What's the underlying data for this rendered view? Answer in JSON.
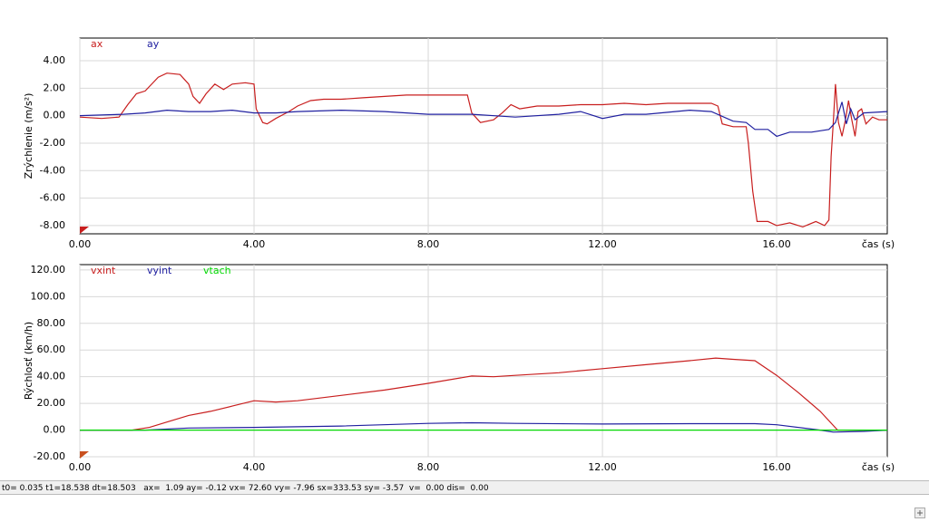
{
  "chart_data": [
    {
      "type": "line",
      "y_label": "Zrýchlenie  (m/s²)",
      "x_label": "čas (s)",
      "grid": true,
      "xlim": [
        0,
        18.54
      ],
      "ylim": [
        -8.6,
        5.65
      ],
      "xticks": [
        {
          "value": 0,
          "label": "0.00"
        },
        {
          "value": 4,
          "label": "4.00"
        },
        {
          "value": 8,
          "label": "8.00"
        },
        {
          "value": 12,
          "label": "12.00"
        },
        {
          "value": 16,
          "label": "16.00"
        }
      ],
      "yticks": [
        {
          "value": 4,
          "label": "4.00"
        },
        {
          "value": 2,
          "label": "2.00"
        },
        {
          "value": 0,
          "label": "0.00"
        },
        {
          "value": -2,
          "label": "-2.00"
        },
        {
          "value": -4,
          "label": "-4.00"
        },
        {
          "value": -6,
          "label": "-6.00"
        },
        {
          "value": -8,
          "label": "-8.00"
        }
      ],
      "series": [
        {
          "name": "ax",
          "color": "#c81e1e",
          "x": [
            0,
            0.5,
            0.9,
            1.1,
            1.3,
            1.5,
            1.8,
            2.0,
            2.3,
            2.5,
            2.6,
            2.75,
            2.9,
            3.1,
            3.3,
            3.5,
            3.8,
            4.0,
            4.05,
            4.2,
            4.3,
            4.5,
            4.8,
            5.0,
            5.3,
            5.6,
            6,
            6.5,
            7,
            7.5,
            8,
            8.5,
            8.9,
            9.0,
            9.2,
            9.5,
            9.7,
            9.9,
            10.1,
            10.5,
            11,
            11.5,
            12,
            12.5,
            13,
            13.5,
            14,
            14.5,
            14.65,
            14.75,
            15.0,
            15.3,
            15.35,
            15.45,
            15.55,
            15.8,
            16.0,
            16.3,
            16.6,
            16.9,
            17.1,
            17.2,
            17.25,
            17.3,
            17.35,
            17.42,
            17.5,
            17.58,
            17.65,
            17.72,
            17.8,
            17.87,
            17.95,
            18.05,
            18.2,
            18.35,
            18.54
          ],
          "values": [
            -0.1,
            -0.2,
            -0.1,
            0.8,
            1.6,
            1.8,
            2.8,
            3.1,
            3.0,
            2.3,
            1.4,
            0.9,
            1.6,
            2.3,
            1.9,
            2.3,
            2.4,
            2.3,
            0.5,
            -0.5,
            -0.6,
            -0.2,
            0.3,
            0.7,
            1.1,
            1.2,
            1.2,
            1.3,
            1.4,
            1.5,
            1.5,
            1.5,
            1.5,
            0.2,
            -0.5,
            -0.3,
            0.2,
            0.8,
            0.5,
            0.7,
            0.7,
            0.8,
            0.8,
            0.9,
            0.8,
            0.9,
            0.9,
            0.9,
            0.7,
            -0.6,
            -0.8,
            -0.8,
            -2,
            -5.5,
            -7.7,
            -7.7,
            -8.0,
            -7.8,
            -8.1,
            -7.7,
            -8.0,
            -7.6,
            -3,
            -0.5,
            2.3,
            -0.5,
            -1.5,
            -0.3,
            1.1,
            -0.2,
            -1.5,
            0.3,
            0.5,
            -0.6,
            -0.1,
            -0.3,
            -0.3
          ]
        },
        {
          "name": "ay",
          "color": "#2020a0",
          "x": [
            0,
            1,
            1.5,
            2,
            2.5,
            3,
            3.5,
            4,
            4.5,
            5,
            6,
            7,
            8,
            9,
            10,
            11,
            11.5,
            12,
            12.5,
            13,
            14,
            14.5,
            15,
            15.3,
            15.5,
            15.8,
            16.0,
            16.3,
            16.8,
            17.2,
            17.35,
            17.5,
            17.6,
            17.7,
            17.8,
            18,
            18.54
          ],
          "values": [
            0,
            0.1,
            0.2,
            0.4,
            0.3,
            0.3,
            0.4,
            0.2,
            0.2,
            0.3,
            0.4,
            0.3,
            0.1,
            0.1,
            -0.1,
            0.1,
            0.3,
            -0.2,
            0.1,
            0.1,
            0.4,
            0.3,
            -0.4,
            -0.5,
            -1.0,
            -1.0,
            -1.5,
            -1.2,
            -1.2,
            -1.0,
            -0.5,
            1.0,
            -0.6,
            0.5,
            -0.3,
            0.2,
            0.3
          ]
        }
      ]
    },
    {
      "type": "line",
      "y_label": "Rýchlosť (km/h)",
      "x_label": "čas (s)",
      "grid": true,
      "xlim": [
        0,
        18.54
      ],
      "ylim": [
        -20,
        124
      ],
      "xticks": [
        {
          "value": 0,
          "label": "0.00"
        },
        {
          "value": 4,
          "label": "4.00"
        },
        {
          "value": 8,
          "label": "8.00"
        },
        {
          "value": 12,
          "label": "12.00"
        },
        {
          "value": 16,
          "label": "16.00"
        }
      ],
      "yticks": [
        {
          "value": 120,
          "label": "120.00"
        },
        {
          "value": 100,
          "label": "100.00"
        },
        {
          "value": 80,
          "label": "80.00"
        },
        {
          "value": 60,
          "label": "60.00"
        },
        {
          "value": 40,
          "label": "40.00"
        },
        {
          "value": 20,
          "label": "20.00"
        },
        {
          "value": 0,
          "label": "0.00"
        },
        {
          "value": -20,
          "label": "-20.00"
        }
      ],
      "series": [
        {
          "name": "vxint",
          "color": "#c81e1e",
          "x": [
            0,
            1.2,
            1.6,
            2.0,
            2.5,
            3,
            3.5,
            4,
            4.5,
            5,
            6,
            7,
            8,
            9,
            9.5,
            10,
            11,
            12,
            13,
            14,
            14.6,
            15,
            15.5,
            16,
            16.5,
            17,
            17.4,
            18,
            18.54
          ],
          "values": [
            0,
            0,
            2,
            6,
            11,
            14,
            18,
            22,
            21,
            22,
            26,
            30,
            35,
            40.5,
            40,
            41,
            43,
            46,
            49,
            52,
            54,
            53,
            52,
            41,
            28,
            14,
            0,
            0,
            0
          ]
        },
        {
          "name": "vyint",
          "color": "#2020a0",
          "x": [
            0,
            1.5,
            2.5,
            4,
            6,
            8,
            9,
            10,
            12,
            14,
            15.5,
            16,
            17,
            17.3,
            18,
            18.54
          ],
          "values": [
            0,
            0,
            1.5,
            2,
            3,
            5,
            5.5,
            5,
            4.5,
            4.8,
            4.8,
            4,
            0,
            -1.5,
            -1,
            0
          ]
        },
        {
          "name": "vtach",
          "color": "#00d800",
          "x": [
            0,
            18.54
          ],
          "values": [
            0,
            0
          ]
        }
      ]
    }
  ],
  "status": {
    "text": "t0= 0.035 t1=18.538 dt=18.503   ax=  1.09 ay= -0.12 vx= 72.60 vy= -7.96 sx=333.53 sy= -3.57  v=  0.00 dis=  0.00"
  }
}
